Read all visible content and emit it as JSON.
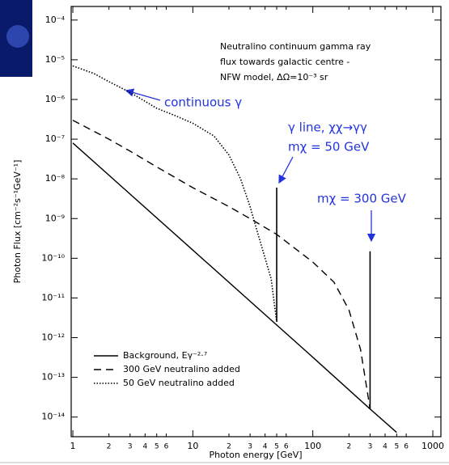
{
  "chart_data": {
    "type": "line",
    "xlabel": "Photon energy [GeV]",
    "ylabel": "Photon Flux [cm⁻²s⁻¹GeV⁻¹]",
    "note": [
      "Neutralino continuum gamma ray",
      "flux towards galactic centre -",
      "NFW model, ΔΩ=10⁻³ sr"
    ],
    "annotations": [
      "continuous γ",
      "γ line, χχ→γγ",
      "mχ = 50 GeV",
      "mχ = 300 GeV"
    ],
    "xscale": "log",
    "yscale": "log",
    "xlim": [
      0.969,
      1168
    ],
    "ylim": [
      3.2e-15,
      0.00022
    ],
    "xticks": [
      1,
      2,
      3,
      4,
      5,
      6,
      10,
      {
        "value": 20,
        "label": "2"
      },
      {
        "value": 30,
        "label": "3"
      },
      {
        "value": 40,
        "label": "4"
      },
      {
        "value": 50,
        "label": "5"
      },
      {
        "value": 60,
        "label": "6"
      },
      100,
      {
        "value": 200,
        "label": "2"
      },
      {
        "value": 300,
        "label": "3"
      },
      {
        "value": 400,
        "label": "4"
      },
      {
        "value": 500,
        "label": "5"
      },
      {
        "value": 600,
        "label": "6"
      },
      1000
    ],
    "yticks": [
      {
        "value": 0.0001,
        "label": "10⁻⁴"
      },
      {
        "value": 1e-05,
        "label": "10⁻⁵"
      },
      {
        "value": 1e-06,
        "label": "10⁻⁶"
      },
      {
        "value": 1e-07,
        "label": "10⁻⁷"
      },
      {
        "value": 1e-08,
        "label": "10⁻⁸"
      },
      {
        "value": 1e-09,
        "label": "10⁻⁹"
      },
      {
        "value": 1e-10,
        "label": "10⁻¹⁰"
      },
      {
        "value": 1e-11,
        "label": "10⁻¹¹"
      },
      {
        "value": 1e-12,
        "label": "10⁻¹²"
      },
      {
        "value": 1e-13,
        "label": "10⁻¹³"
      },
      {
        "value": 1e-14,
        "label": "10⁻¹⁴"
      }
    ],
    "legend": "lower left",
    "series": [
      {
        "name": "Background, Eγ⁻²·⁷",
        "color": "#000000",
        "style": "solid",
        "x": [
          1,
          10,
          100,
          300,
          500
        ],
        "values": [
          8e-08,
          1.6e-10,
          3.2e-13,
          1.6e-14,
          4.1e-15
        ]
      },
      {
        "name": "300 GeV neutralino added",
        "color": "#000000",
        "style": "dashed",
        "x": [
          1,
          2,
          3,
          5,
          10,
          20,
          30,
          50,
          100,
          150,
          200,
          250,
          290,
          300
        ],
        "values": [
          3e-07,
          1e-07,
          5e-08,
          2e-08,
          6e-09,
          2e-09,
          1e-09,
          4e-10,
          8e-11,
          2.5e-11,
          5e-12,
          5e-13,
          3e-14,
          1.6e-14
        ]
      },
      {
        "name": "50 GeV neutralino added",
        "color": "#000000",
        "style": "dotted",
        "x": [
          1,
          1.5,
          2,
          3,
          4,
          5,
          7,
          10,
          15,
          20,
          25,
          30,
          35,
          40,
          45,
          50
        ],
        "values": [
          7e-06,
          4.5e-06,
          2.8e-06,
          1.5e-06,
          9e-07,
          6e-07,
          4e-07,
          2.5e-07,
          1.2e-07,
          4e-08,
          1e-08,
          2e-09,
          4e-10,
          1e-10,
          3e-11,
          2.5e-12
        ]
      }
    ],
    "gamma_lines": [
      {
        "x": 50,
        "values": [
          2.5e-12,
          6e-09
        ]
      },
      {
        "x": 300,
        "values": [
          1.6e-14,
          1.5e-10
        ]
      }
    ]
  }
}
